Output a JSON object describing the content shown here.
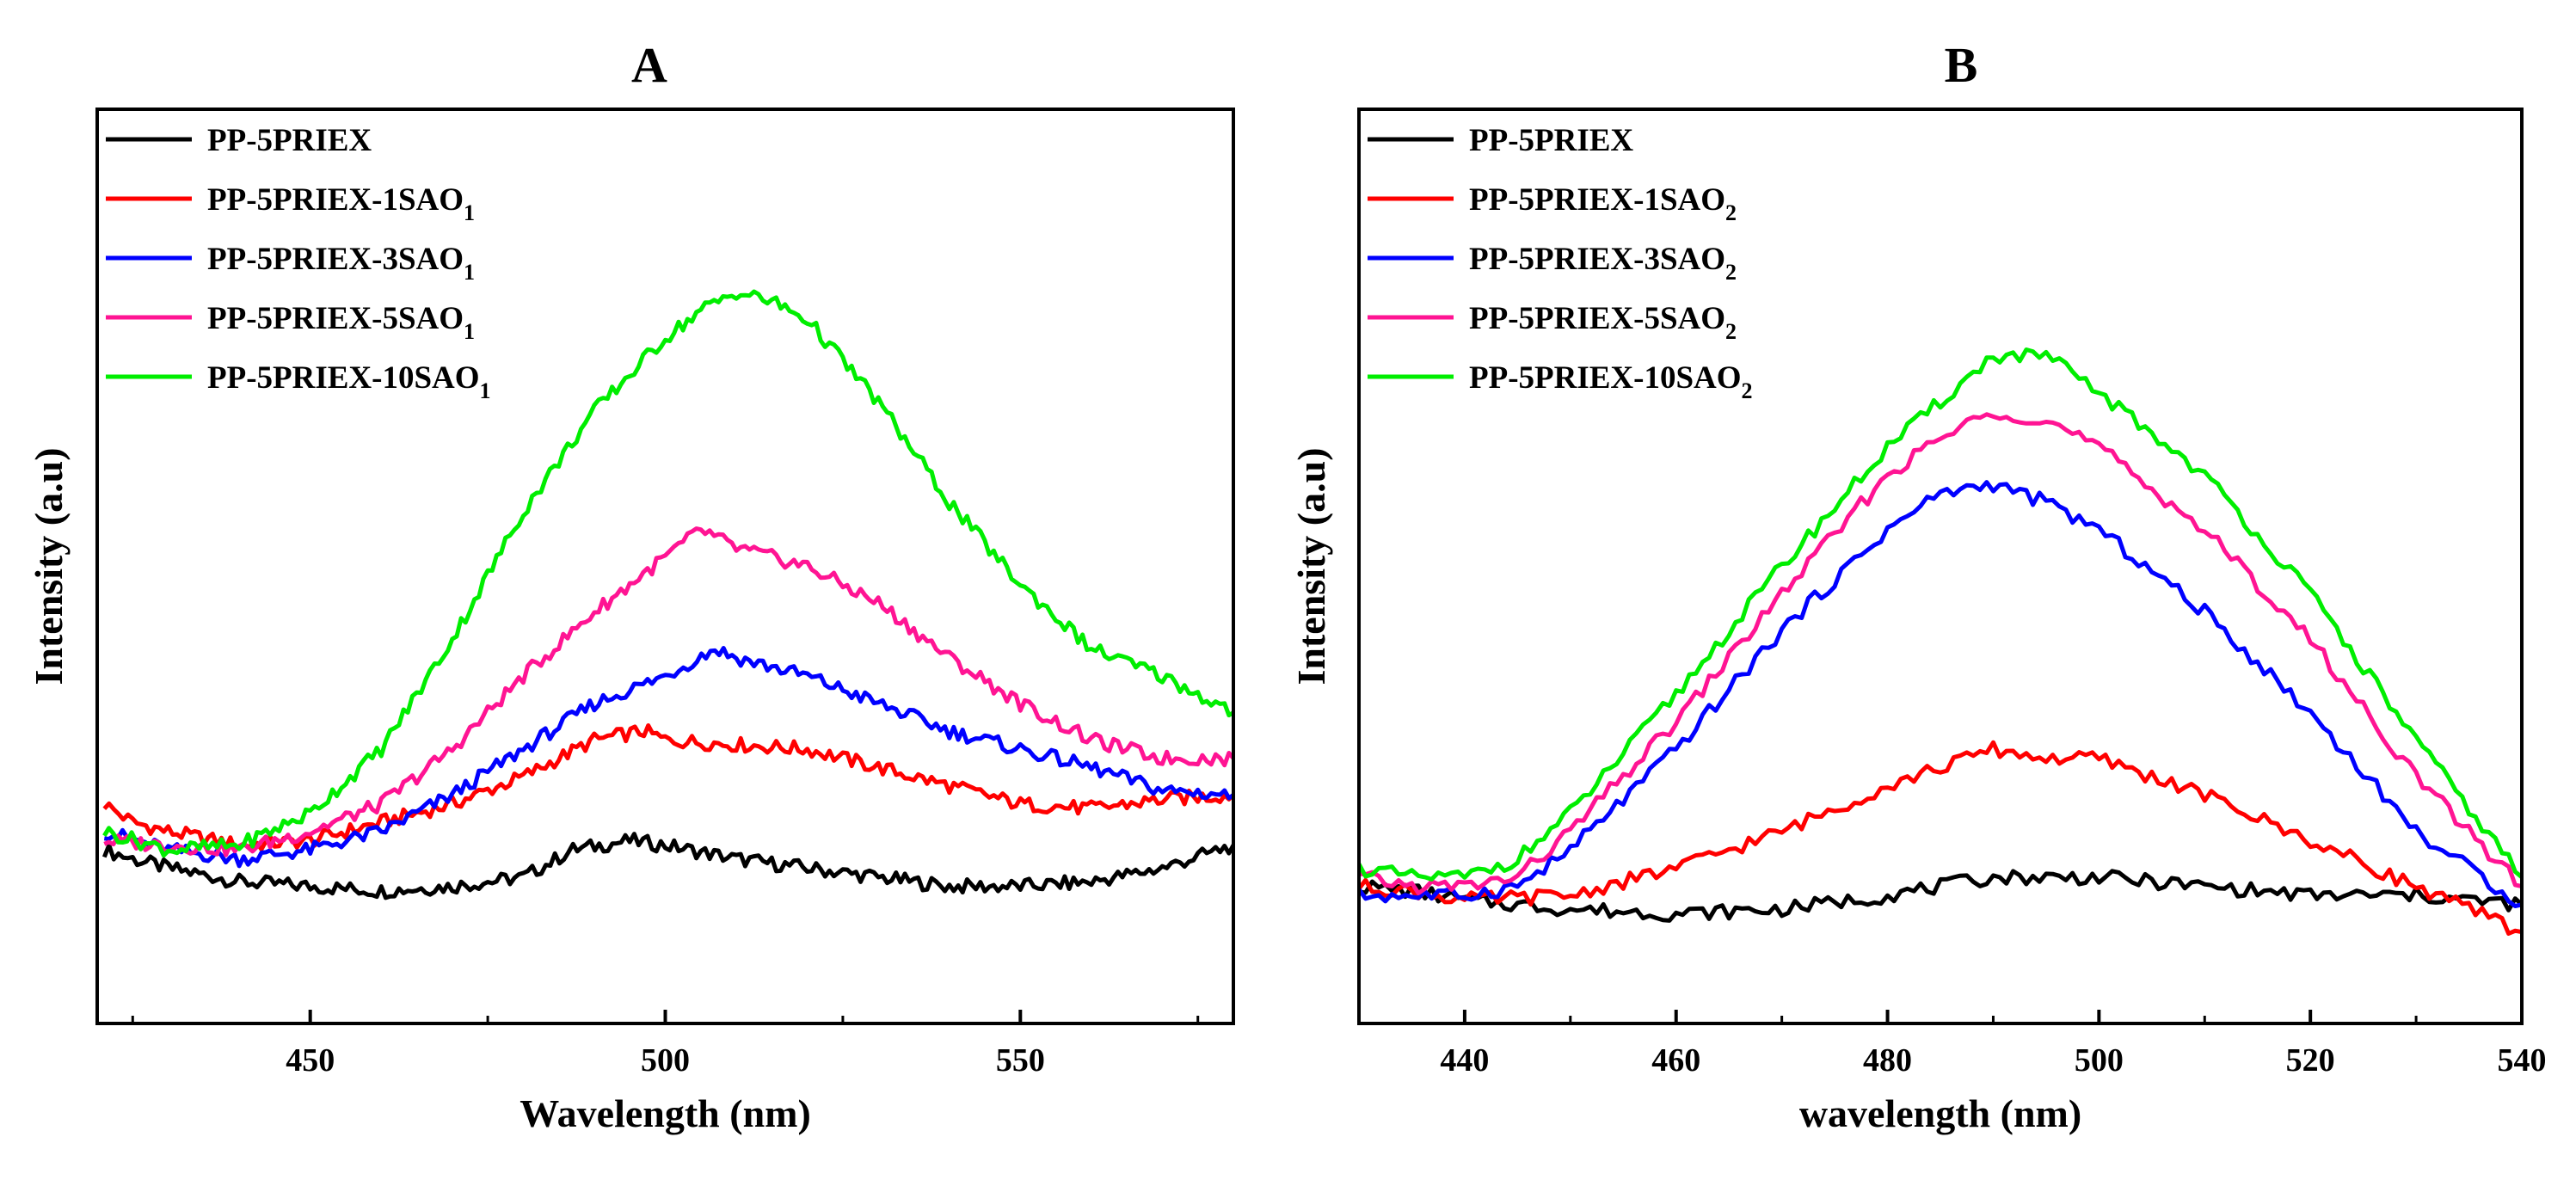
{
  "figure": {
    "panels": [
      {
        "label": "A"
      },
      {
        "label": "B"
      }
    ]
  },
  "chart_data": [
    {
      "panel": "A",
      "type": "line",
      "xlabel": "Wavelength (nm)",
      "ylabel": "Intensity (a.u)",
      "xlim": [
        420,
        580
      ],
      "ylim": [
        0,
        100
      ],
      "xticks": [
        450,
        500,
        550
      ],
      "y_tick_labels_shown": false,
      "grid": false,
      "legend_position": "top-left",
      "series": [
        {
          "name": "PP-5PRIEX",
          "subscript": "",
          "color": "#000000",
          "points": [
            [
              421,
              19
            ],
            [
              425,
              18
            ],
            [
              430,
              17
            ],
            [
              440,
              15.5
            ],
            [
              450,
              15
            ],
            [
              460,
              14.5
            ],
            [
              470,
              15
            ],
            [
              480,
              16
            ],
            [
              487,
              19
            ],
            [
              495,
              20
            ],
            [
              500,
              19.5
            ],
            [
              510,
              18
            ],
            [
              520,
              17
            ],
            [
              530,
              16
            ],
            [
              540,
              15
            ],
            [
              550,
              15
            ],
            [
              560,
              15.5
            ],
            [
              570,
              17
            ],
            [
              580,
              19.5
            ]
          ]
        },
        {
          "name": "PP-5PRIEX-1SAO",
          "subscript": "1",
          "color": "#ff0000",
          "points": [
            [
              421,
              24
            ],
            [
              425,
              22
            ],
            [
              430,
              21
            ],
            [
              440,
              19.5
            ],
            [
              450,
              20
            ],
            [
              460,
              22
            ],
            [
              470,
              24
            ],
            [
              480,
              27
            ],
            [
              490,
              31
            ],
            [
              497,
              32
            ],
            [
              500,
              31
            ],
            [
              510,
              30.5
            ],
            [
              520,
              30
            ],
            [
              530,
              28
            ],
            [
              540,
              26
            ],
            [
              550,
              24
            ],
            [
              560,
              23.5
            ],
            [
              570,
              24.5
            ],
            [
              580,
              25
            ]
          ]
        },
        {
          "name": "PP-5PRIEX-3SAO",
          "subscript": "1",
          "color": "#0000ff",
          "points": [
            [
              421,
              21
            ],
            [
              430,
              19
            ],
            [
              440,
              18
            ],
            [
              450,
              19
            ],
            [
              460,
              21
            ],
            [
              470,
              25
            ],
            [
              480,
              30
            ],
            [
              490,
              35
            ],
            [
              500,
              38
            ],
            [
              507,
              41
            ],
            [
              510,
              40
            ],
            [
              520,
              38
            ],
            [
              530,
              35
            ],
            [
              540,
              32
            ],
            [
              550,
              30
            ],
            [
              560,
              28
            ],
            [
              570,
              25.5
            ],
            [
              580,
              25
            ]
          ]
        },
        {
          "name": "PP-5PRIEX-5SAO",
          "subscript": "1",
          "color": "#ff1493",
          "points": [
            [
              421,
              20
            ],
            [
              430,
              19.5
            ],
            [
              440,
              19
            ],
            [
              450,
              21
            ],
            [
              460,
              24
            ],
            [
              470,
              30
            ],
            [
              480,
              38
            ],
            [
              490,
              45
            ],
            [
              500,
              51
            ],
            [
              505,
              54
            ],
            [
              510,
              52
            ],
            [
              520,
              50
            ],
            [
              530,
              46
            ],
            [
              540,
              40
            ],
            [
              550,
              35
            ],
            [
              560,
              31
            ],
            [
              570,
              29
            ],
            [
              580,
              29
            ]
          ]
        },
        {
          "name": "PP-5PRIEX-10SAO",
          "subscript": "1",
          "color": "#00ee00",
          "points": [
            [
              421,
              21
            ],
            [
              430,
              19
            ],
            [
              440,
              19.5
            ],
            [
              450,
              23
            ],
            [
              460,
              30
            ],
            [
              470,
              42
            ],
            [
              480,
              56
            ],
            [
              490,
              67
            ],
            [
              500,
              75
            ],
            [
              505,
              78
            ],
            [
              510,
              80
            ],
            [
              515,
              79
            ],
            [
              520,
              77
            ],
            [
              530,
              68
            ],
            [
              540,
              57
            ],
            [
              550,
              48
            ],
            [
              560,
              41
            ],
            [
              570,
              38
            ],
            [
              580,
              34
            ]
          ]
        }
      ]
    },
    {
      "panel": "B",
      "type": "line",
      "xlabel": "wavelength (nm)",
      "ylabel": "Intensity (a.u)",
      "xlim": [
        430,
        540
      ],
      "ylim": [
        0,
        100
      ],
      "xticks": [
        440,
        460,
        480,
        500,
        520,
        540
      ],
      "y_tick_labels_shown": false,
      "grid": false,
      "legend_position": "top-left",
      "series": [
        {
          "name": "PP-5PRIEX",
          "subscript": "",
          "color": "#000000",
          "points": [
            [
              430,
              15
            ],
            [
              435,
              14.5
            ],
            [
              440,
              13.5
            ],
            [
              450,
              12.5
            ],
            [
              460,
              12
            ],
            [
              470,
              12.5
            ],
            [
              480,
              14
            ],
            [
              490,
              16
            ],
            [
              500,
              16
            ],
            [
              510,
              15
            ],
            [
              520,
              14
            ],
            [
              530,
              14
            ],
            [
              540,
              13
            ]
          ]
        },
        {
          "name": "PP-5PRIEX-1SAO",
          "subscript": "2",
          "color": "#ff0000",
          "points": [
            [
              430,
              15
            ],
            [
              435,
              14.5
            ],
            [
              440,
              13.5
            ],
            [
              450,
              14
            ],
            [
              460,
              17
            ],
            [
              470,
              21
            ],
            [
              480,
              26
            ],
            [
              485,
              28
            ],
            [
              490,
              30
            ],
            [
              495,
              29
            ],
            [
              500,
              29
            ],
            [
              510,
              25
            ],
            [
              520,
              20
            ],
            [
              530,
              15
            ],
            [
              540,
              10
            ]
          ]
        },
        {
          "name": "PP-5PRIEX-3SAO",
          "subscript": "2",
          "color": "#0000ff",
          "points": [
            [
              430,
              14
            ],
            [
              435,
              14
            ],
            [
              440,
              14
            ],
            [
              445,
              15
            ],
            [
              450,
              19
            ],
            [
              460,
              30
            ],
            [
              470,
              43
            ],
            [
              480,
              54
            ],
            [
              485,
              58
            ],
            [
              490,
              59
            ],
            [
              495,
              57
            ],
            [
              500,
              54
            ],
            [
              510,
              45
            ],
            [
              520,
              34
            ],
            [
              530,
              21
            ],
            [
              540,
              13
            ]
          ]
        },
        {
          "name": "PP-5PRIEX-5SAO",
          "subscript": "2",
          "color": "#ff1493",
          "points": [
            [
              430,
              16
            ],
            [
              435,
              15
            ],
            [
              440,
              15
            ],
            [
              445,
              16
            ],
            [
              450,
              21
            ],
            [
              460,
              33
            ],
            [
              470,
              47
            ],
            [
              480,
              60
            ],
            [
              485,
              64
            ],
            [
              490,
              67
            ],
            [
              495,
              66
            ],
            [
              500,
              63
            ],
            [
              510,
              54
            ],
            [
              520,
              42
            ],
            [
              530,
              27
            ],
            [
              540,
              15
            ]
          ]
        },
        {
          "name": "PP-5PRIEX-10SAO",
          "subscript": "2",
          "color": "#00ee00",
          "points": [
            [
              430,
              17
            ],
            [
              435,
              16
            ],
            [
              440,
              16
            ],
            [
              445,
              18
            ],
            [
              450,
              23
            ],
            [
              460,
              36
            ],
            [
              470,
              50
            ],
            [
              480,
              63
            ],
            [
              485,
              68
            ],
            [
              490,
              73
            ],
            [
              495,
              73
            ],
            [
              500,
              69
            ],
            [
              510,
              60
            ],
            [
              520,
              47
            ],
            [
              530,
              31
            ],
            [
              540,
              16
            ]
          ]
        }
      ]
    }
  ]
}
